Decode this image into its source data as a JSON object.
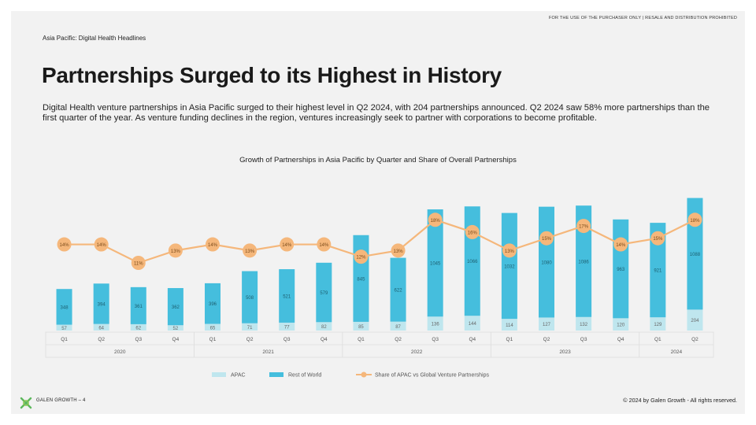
{
  "header": {
    "disclaimer": "FOR THE USE OF THE PURCHASER ONLY | RESALE AND DISTRIBUTION PROHIBITED",
    "section": "Asia Pacific: Digital Health Headlines",
    "title": "Partnerships Surged to its Highest in History",
    "body": "Digital Health venture partnerships in Asia Pacific surged to their highest level in Q2 2024, with 204 partnerships announced. Q2 2024 saw 58% more partnerships than the first quarter of the year. As venture funding declines in the region, ventures increasingly seek to partner with corporations to become profitable."
  },
  "footer": {
    "left": "GALEN GROWTH – 4",
    "right": "© 2024 by Galen Growth  - All rights reserved."
  },
  "colors": {
    "apac": "#bfe6ee",
    "row": "#45bedd",
    "share": "#f5b77b",
    "background": "#f2f2f2"
  },
  "chart_data": {
    "type": "bar",
    "title": "Growth of Partnerships in Asia Pacific by Quarter and Share of Overall Partnerships",
    "stacked": true,
    "categories": [
      "Q1",
      "Q2",
      "Q3",
      "Q4",
      "Q1",
      "Q2",
      "Q3",
      "Q4",
      "Q1",
      "Q2",
      "Q3",
      "Q4",
      "Q1",
      "Q2",
      "Q3",
      "Q4",
      "Q1",
      "Q2"
    ],
    "years": [
      {
        "label": "2020",
        "start": 0,
        "end": 3
      },
      {
        "label": "2021",
        "start": 4,
        "end": 7
      },
      {
        "label": "2022",
        "start": 8,
        "end": 11
      },
      {
        "label": "2023",
        "start": 12,
        "end": 15
      },
      {
        "label": "2024",
        "start": 16,
        "end": 17
      }
    ],
    "series": [
      {
        "name": "APAC",
        "color": "#bfe6ee",
        "values": [
          57,
          64,
          62,
          52,
          65,
          71,
          77,
          82,
          85,
          87,
          136,
          144,
          114,
          127,
          132,
          120,
          129,
          204
        ],
        "labels": [
          "57",
          "64",
          "62",
          "52",
          "65",
          "71",
          "77",
          "82",
          "85",
          "87",
          "136",
          "144",
          "114",
          "127",
          "132",
          "120",
          "129",
          "204"
        ]
      },
      {
        "name": "Rest of World",
        "color": "#45bedd",
        "values": [
          348,
          394,
          361,
          362,
          396,
          508,
          521,
          579,
          845,
          622,
          1045,
          1066,
          1032,
          1080,
          1086,
          963,
          921,
          1088
        ],
        "labels": [
          "348",
          "394",
          "361",
          "362",
          "396",
          "508",
          "521",
          "579",
          "845",
          "622",
          "1045",
          "1066",
          "1032",
          "1080",
          "1086",
          "963",
          "921",
          "1088"
        ]
      },
      {
        "name": "Share of APAC vs Global Venture Partnerships",
        "color": "#f5b77b",
        "kind": "line",
        "values": [
          14,
          14,
          11,
          13,
          14,
          13,
          14,
          14,
          12,
          13,
          18,
          16,
          13,
          15,
          17,
          14,
          15,
          18
        ],
        "labels": [
          "14%",
          "14%",
          "11%",
          "13%",
          "14%",
          "13%",
          "14%",
          "14%",
          "12%",
          "13%",
          "18%",
          "16%",
          "13%",
          "15%",
          "17%",
          "14%",
          "15%",
          "18%"
        ]
      }
    ],
    "ylim": [
      0,
      1350
    ],
    "share_ylim": [
      0,
      22
    ],
    "legend": "bottom",
    "grid": false
  }
}
